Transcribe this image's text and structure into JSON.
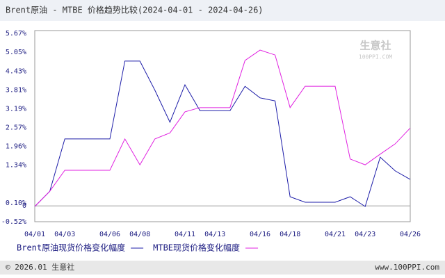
{
  "chart_data": {
    "type": "line",
    "title": "Brent原油 - MTBE 价格趋势比较(2024-04-01 - 2024-04-26)",
    "categories": [
      "04/01",
      null,
      "04/03",
      null,
      null,
      "04/06",
      null,
      "04/08",
      null,
      null,
      "04/11",
      null,
      "04/13",
      null,
      null,
      "04/16",
      null,
      "04/18",
      null,
      null,
      "04/21",
      null,
      "04/23",
      null,
      null,
      "04/26"
    ],
    "series": [
      {
        "name": "Brent原油现货价格变化幅度",
        "color": "#1c1ca8",
        "values": [
          -0.02,
          0.48,
          2.2,
          2.2,
          2.2,
          2.2,
          4.76,
          4.76,
          3.8,
          2.75,
          3.98,
          3.13,
          3.13,
          3.13,
          3.93,
          3.55,
          3.45,
          0.3,
          0.12,
          0.12,
          0.12,
          0.3,
          -0.02,
          1.6,
          1.15,
          0.87
        ]
      },
      {
        "name": "MTBE现货价格变化幅度",
        "color": "#e020e0",
        "values": [
          -0.02,
          0.48,
          1.17,
          1.17,
          1.17,
          1.17,
          2.2,
          1.35,
          2.2,
          2.4,
          3.09,
          3.23,
          3.23,
          3.23,
          4.78,
          5.12,
          4.96,
          3.23,
          3.93,
          3.93,
          3.93,
          1.54,
          1.35,
          1.7,
          2.04,
          2.56
        ]
      }
    ],
    "ylim": [
      -0.52,
      5.67
    ],
    "yticks": [
      {
        "value": 5.67,
        "label": "5.67%"
      },
      {
        "value": 5.05,
        "label": "5.05%"
      },
      {
        "value": 4.43,
        "label": "4.43%"
      },
      {
        "value": 3.81,
        "label": "3.81%"
      },
      {
        "value": 3.19,
        "label": "3.19%"
      },
      {
        "value": 2.57,
        "label": "2.57%"
      },
      {
        "value": 1.96,
        "label": "1.96%"
      },
      {
        "value": 1.34,
        "label": "1.34%"
      },
      0,
      {
        "value": 0.1,
        "label": "0.10%"
      },
      {
        "value": -0.52,
        "label": "-0.52%"
      }
    ],
    "watermark": "生意社",
    "watermark_sub": "100PPI.COM",
    "footer_left": "© 2026.01 生意社",
    "footer_right": "www.100PPI.com"
  }
}
